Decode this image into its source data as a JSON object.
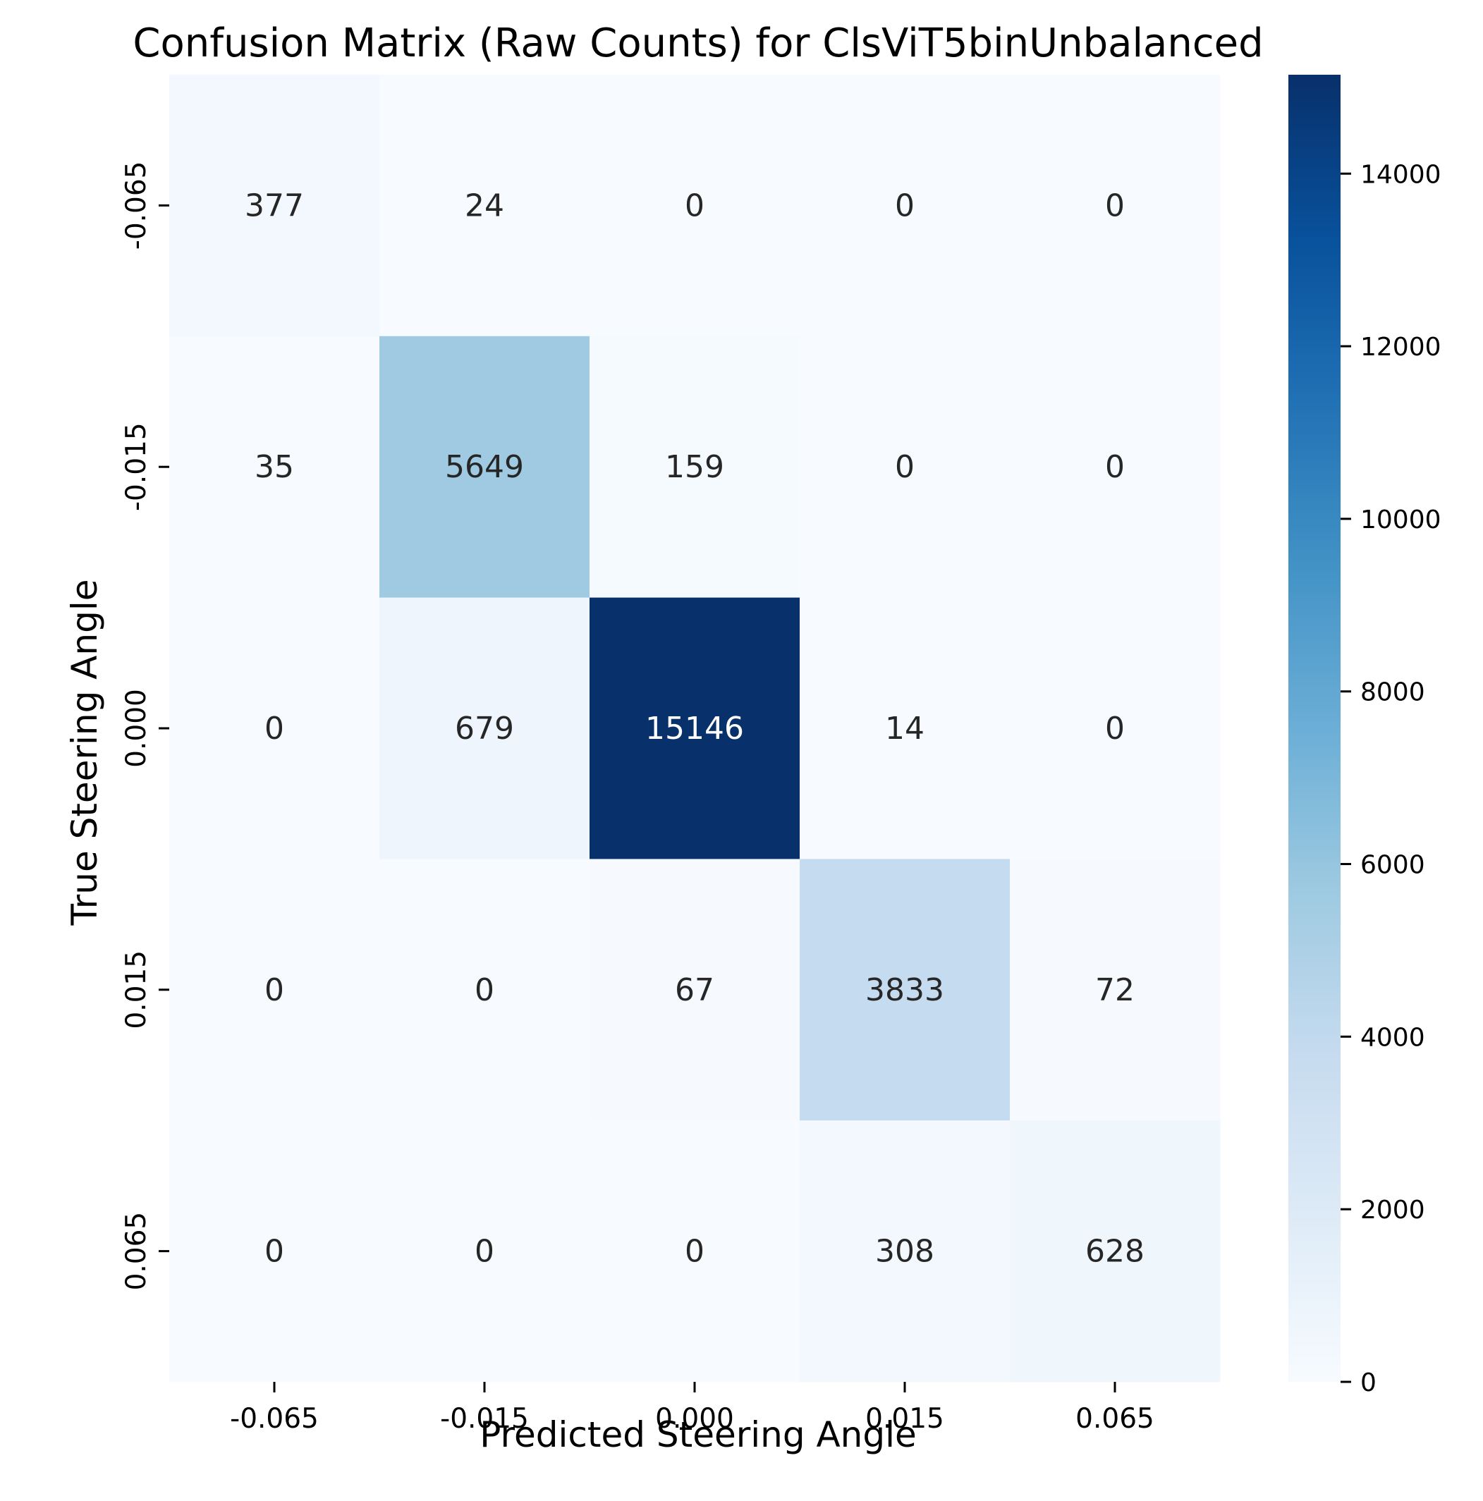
{
  "chart_data": {
    "type": "heatmap",
    "title": "Confusion Matrix (Raw Counts) for ClsViT5binUnbalanced",
    "xlabel": "Predicted Steering Angle",
    "ylabel": "True Steering Angle",
    "x_categories": [
      "-0.065",
      "-0.015",
      "0.000",
      "0.015",
      "0.065"
    ],
    "y_categories": [
      "-0.065",
      "-0.015",
      "0.000",
      "0.015",
      "0.065"
    ],
    "values": [
      [
        377,
        24,
        0,
        0,
        0
      ],
      [
        35,
        5649,
        159,
        0,
        0
      ],
      [
        0,
        679,
        15146,
        14,
        0
      ],
      [
        0,
        0,
        67,
        3833,
        72
      ],
      [
        0,
        0,
        0,
        308,
        628
      ]
    ],
    "colormap": "Blues",
    "colorbar": {
      "min": 0,
      "max": 15146,
      "ticks": [
        0,
        2000,
        4000,
        6000,
        8000,
        10000,
        12000,
        14000
      ]
    },
    "annotation_colors": {
      "dark": "#262626",
      "light": "#ffffff"
    },
    "grid": false,
    "legend": "colorbar at right"
  }
}
